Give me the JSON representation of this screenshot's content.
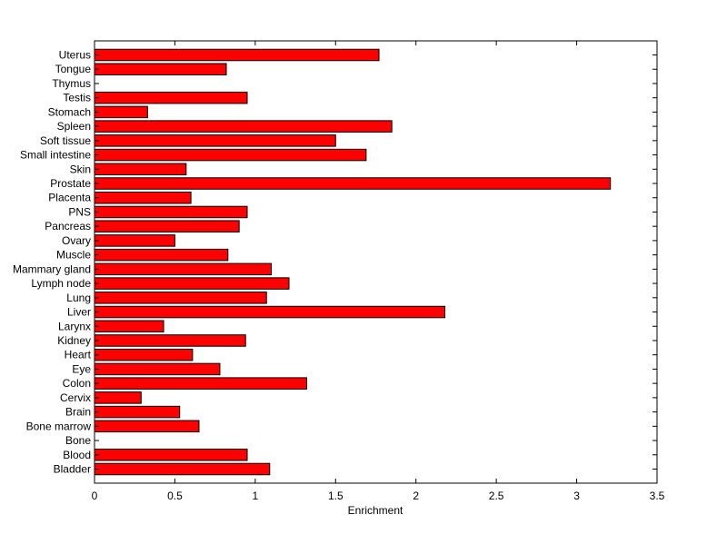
{
  "chart_data": {
    "type": "bar",
    "orientation": "horizontal",
    "title": "",
    "xlabel": "Enrichment",
    "ylabel": "",
    "xlim": [
      0,
      3.5
    ],
    "xticks": [
      "0",
      "0.5",
      "1",
      "1.5",
      "2",
      "2.5",
      "3",
      "3.5"
    ],
    "grid": false,
    "legend": "none",
    "bar_color": "#ff0000",
    "bar_edge_color": "#000000",
    "categories": [
      "Uterus",
      "Tongue",
      "Thymus",
      "Testis",
      "Stomach",
      "Spleen",
      "Soft tissue",
      "Small intestine",
      "Skin",
      "Prostate",
      "Placenta",
      "PNS",
      "Pancreas",
      "Ovary",
      "Muscle",
      "Mammary gland",
      "Lymph node",
      "Lung",
      "Liver",
      "Larynx",
      "Kidney",
      "Heart",
      "Eye",
      "Colon",
      "Cervix",
      "Brain",
      "Bone marrow",
      "Bone",
      "Blood",
      "Bladder"
    ],
    "values": [
      1.77,
      0.82,
      0,
      0.95,
      0.33,
      1.85,
      1.5,
      1.69,
      0.57,
      3.21,
      0.6,
      0.95,
      0.9,
      0.5,
      0.83,
      1.1,
      1.21,
      1.07,
      2.18,
      0.43,
      0.94,
      0.61,
      0.78,
      1.32,
      0.29,
      0.53,
      0.65,
      0,
      0.95,
      1.09
    ]
  }
}
